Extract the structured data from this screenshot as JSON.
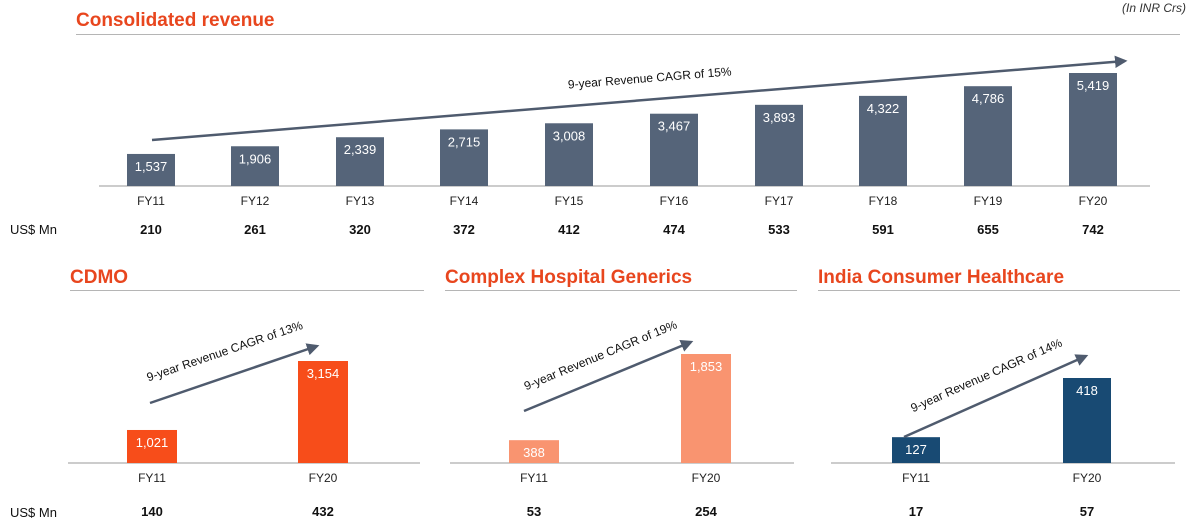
{
  "unit_note": "(In INR Crs)",
  "usd_label": "US$ Mn",
  "colors": {
    "title": "#e8461e",
    "consolidated": "#556479",
    "cdmo": "#f74d1a",
    "chg": "#f99470",
    "ich": "#184a73",
    "arrow": "#4f5b6e"
  },
  "chart_data": [
    {
      "id": "consolidated",
      "type": "bar",
      "title": "Consolidated revenue",
      "categories": [
        "FY11",
        "FY12",
        "FY13",
        "FY14",
        "FY15",
        "FY16",
        "FY17",
        "FY18",
        "FY19",
        "FY20"
      ],
      "values": [
        1537,
        1906,
        2339,
        2715,
        3008,
        3467,
        3893,
        4322,
        4786,
        5419
      ],
      "value_labels": [
        "1,537",
        "1,906",
        "2,339",
        "2,715",
        "3,008",
        "3,467",
        "3,893",
        "4,322",
        "4,786",
        "5,419"
      ],
      "usd_values": [
        "210",
        "261",
        "320",
        "372",
        "412",
        "474",
        "533",
        "591",
        "655",
        "742"
      ],
      "cagr_label": "9-year Revenue CAGR of 15%",
      "ylim": [
        0,
        5419
      ]
    },
    {
      "id": "cdmo",
      "type": "bar",
      "title": "CDMO",
      "categories": [
        "FY11",
        "FY20"
      ],
      "values": [
        1021,
        3154
      ],
      "value_labels": [
        "1,021",
        "3,154"
      ],
      "usd_values": [
        "140",
        "432"
      ],
      "cagr_label": "9-year Revenue CAGR of 13%",
      "ylim": [
        0,
        3154
      ]
    },
    {
      "id": "chg",
      "type": "bar",
      "title": "Complex Hospital Generics",
      "categories": [
        "FY11",
        "FY20"
      ],
      "values": [
        388,
        1853
      ],
      "value_labels": [
        "388",
        "1,853"
      ],
      "usd_values": [
        "53",
        "254"
      ],
      "cagr_label": "9-year Revenue CAGR of 19%",
      "ylim": [
        0,
        1853
      ]
    },
    {
      "id": "ich",
      "type": "bar",
      "title": "India Consumer Healthcare",
      "categories": [
        "FY11",
        "FY20"
      ],
      "values": [
        127,
        418
      ],
      "value_labels": [
        "127",
        "418"
      ],
      "usd_values": [
        "17",
        "57"
      ],
      "cagr_label": "9-year Revenue CAGR of 14%",
      "ylim": [
        0,
        418
      ]
    }
  ]
}
